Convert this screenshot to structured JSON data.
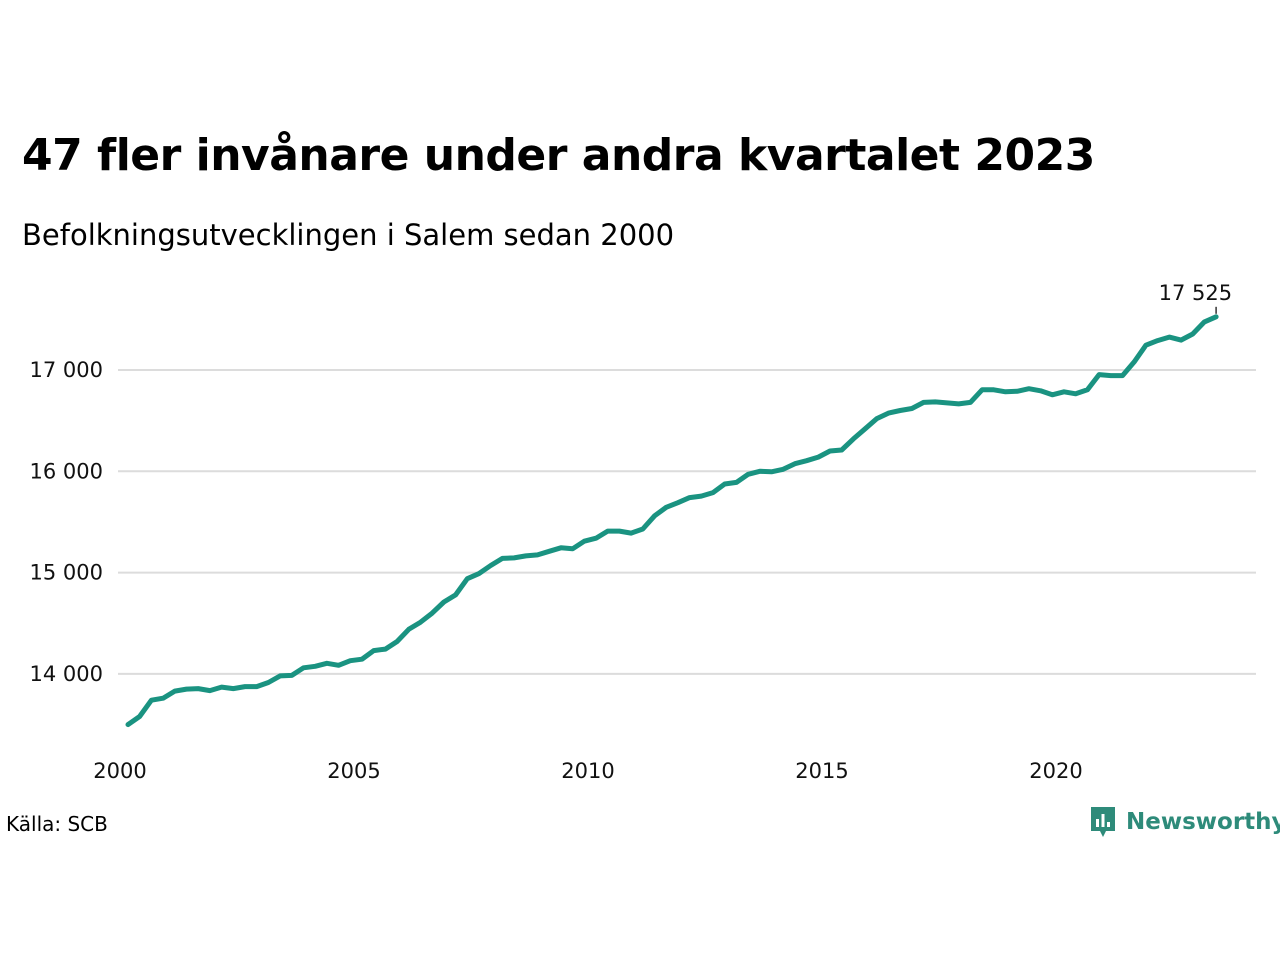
{
  "title": "47 fler invånare under andra kvartalet 2023",
  "subtitle": "Befolkningsutvecklingen i Salem sedan 2000",
  "source": "Källa: SCB",
  "brand": "Newsworthy",
  "colors": {
    "line": "#1a9381",
    "grid": "#dcdcdc",
    "brand": "#2e8b7a"
  },
  "chart_data": {
    "type": "line",
    "title": "47 fler invånare under andra kvartalet 2023",
    "subtitle": "Befolkningsutvecklingen i Salem sedan 2000",
    "xlabel": "",
    "ylabel": "",
    "xlim": [
      2000,
      2024.25
    ],
    "ylim": [
      13400,
      17600
    ],
    "grid": "horizontal",
    "x_ticks": [
      2000,
      2005,
      2010,
      2015,
      2020
    ],
    "x_tick_labels": [
      "2000",
      "2005",
      "2010",
      "2015",
      "2020"
    ],
    "y_ticks": [
      14000,
      15000,
      16000,
      17000
    ],
    "y_tick_labels": [
      "14 000",
      "15 000",
      "16 000",
      "17 000"
    ],
    "end_label": "17 525",
    "series": [
      {
        "x": [
          2000,
          2000.25,
          2000.5,
          2000.75,
          2001,
          2001.25,
          2001.5,
          2001.75,
          2002,
          2002.25,
          2002.5,
          2002.75,
          2003,
          2003.25,
          2003.5,
          2003.75,
          2004,
          2004.25,
          2004.5,
          2004.75,
          2005,
          2005.25,
          2005.5,
          2005.75,
          2006,
          2006.25,
          2006.5,
          2006.75,
          2007,
          2007.25,
          2007.5,
          2007.75,
          2008,
          2008.25,
          2008.5,
          2008.75,
          2009,
          2009.25,
          2009.5,
          2009.75,
          2010,
          2010.25,
          2010.5,
          2010.75,
          2011,
          2011.25,
          2011.5,
          2011.75,
          2012,
          2012.25,
          2012.5,
          2012.75,
          2013,
          2013.25,
          2013.5,
          2013.75,
          2014,
          2014.25,
          2014.5,
          2014.75,
          2015,
          2015.25,
          2015.5,
          2015.75,
          2016,
          2016.25,
          2016.5,
          2016.75,
          2017,
          2017.25,
          2017.5,
          2017.75,
          2018,
          2018.25,
          2018.5,
          2018.75,
          2019,
          2019.25,
          2019.5,
          2019.75,
          2020,
          2020.25,
          2020.5,
          2020.75,
          2021,
          2021.25,
          2021.5,
          2021.75,
          2022,
          2022.25,
          2022.5,
          2022.75,
          2023,
          2023.25
        ],
        "y": [
          13500,
          13580,
          13740,
          13760,
          13830,
          13850,
          13855,
          13835,
          13870,
          13855,
          13875,
          13875,
          13915,
          13980,
          13985,
          14060,
          14075,
          14105,
          14085,
          14130,
          14145,
          14230,
          14245,
          14320,
          14440,
          14510,
          14600,
          14710,
          14780,
          14940,
          14990,
          15070,
          15140,
          15145,
          15165,
          15175,
          15210,
          15245,
          15235,
          15310,
          15340,
          15410,
          15410,
          15390,
          15430,
          15560,
          15645,
          15690,
          15740,
          15755,
          15790,
          15875,
          15890,
          15970,
          16000,
          15995,
          16020,
          16075,
          16105,
          16140,
          16200,
          16210,
          16320,
          16420,
          16520,
          16575,
          16600,
          16620,
          16680,
          16685,
          16675,
          16665,
          16680,
          16805,
          16805,
          16785,
          16790,
          16815,
          16795,
          16755,
          16785,
          16765,
          16805,
          16955,
          16945,
          16945,
          17080,
          17245,
          17290,
          17325,
          17295,
          17355,
          17475,
          17525
        ]
      }
    ]
  }
}
